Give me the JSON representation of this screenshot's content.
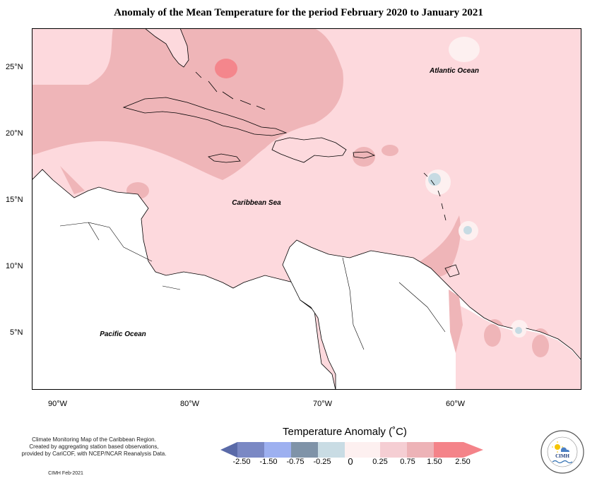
{
  "title": "Anomaly of the Mean Temperature for the period February 2020 to January 2021",
  "map_labels": {
    "atlantic": "Atlantic Ocean",
    "caribbean": "Caribbean Sea",
    "pacific": "Pacific Ocean"
  },
  "lat_ticks": [
    "25°N",
    "20°N",
    "15°N",
    "10°N",
    "5°N"
  ],
  "lon_ticks": [
    "90°W",
    "80°W",
    "70°W",
    "60°W"
  ],
  "legend": {
    "title": "Temperature Anomaly (˚C)",
    "ticks": [
      "-2.50",
      "-1.50",
      "-0.75",
      "-0.25",
      "0",
      "0.25",
      "0.75",
      "1.50",
      "2.50"
    ],
    "colors": [
      "#5a6aa8",
      "#8090d0",
      "#9fb2f0",
      "#7f93a8",
      "#c9dce4",
      "#fde9ea",
      "#f5ced3",
      "#edb3b7",
      "#f48389"
    ]
  },
  "credits": {
    "line1": "Climate Monitoring Map of the Caribbean Region.",
    "line2": "Created by aggregating station based observations,",
    "line3": "provided by CariCOF, with NCEP/NCAR Reanalysis Data.",
    "date": "CIMH Feb-2021"
  },
  "logo": {
    "name": "CIMH",
    "ring_text": "Caribbean Institute for Meteorology and Hydrology"
  }
}
